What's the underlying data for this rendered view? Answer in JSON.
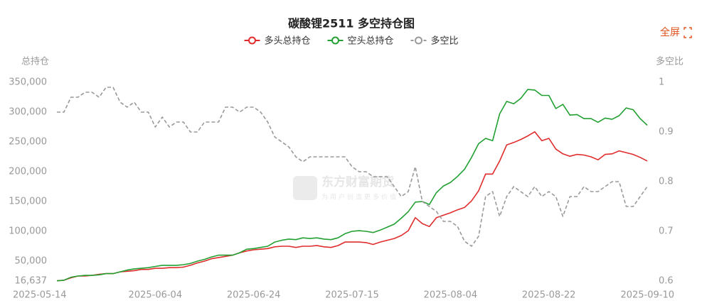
{
  "chart_data": {
    "type": "line",
    "title": "碳酸锂2511 多空持仓图",
    "y_label": "总持仓",
    "y2_label": "多空比",
    "categories": [
      "2025-05-14",
      null,
      null,
      null,
      null,
      null,
      null,
      null,
      null,
      null,
      null,
      null,
      null,
      null,
      "2025-06-04",
      null,
      null,
      null,
      null,
      null,
      null,
      null,
      null,
      null,
      null,
      null,
      null,
      null,
      "2025-06-24",
      null,
      null,
      null,
      null,
      null,
      null,
      null,
      null,
      null,
      null,
      null,
      null,
      null,
      "2025-07-15",
      null,
      null,
      null,
      null,
      null,
      null,
      null,
      null,
      null,
      null,
      null,
      null,
      null,
      "2025-08-04",
      null,
      null,
      null,
      null,
      null,
      null,
      null,
      null,
      null,
      null,
      null,
      null,
      null,
      "2025-08-22",
      null,
      null,
      null,
      null,
      null,
      null,
      null,
      null,
      null,
      null,
      null,
      null,
      null,
      "2025-09-10"
    ],
    "series": [
      {
        "name": "多头总持仓",
        "color": "#e02c2c",
        "values": [
          17000,
          18000,
          22000,
          25000,
          25000,
          26000,
          28000,
          29000,
          29000,
          32000,
          33000,
          34000,
          36000,
          36000,
          38000,
          38000,
          39000,
          39000,
          40000,
          43000,
          47000,
          50000,
          54000,
          56000,
          58000,
          60000,
          64000,
          67000,
          69000,
          70000,
          71000,
          74000,
          75000,
          75000,
          73000,
          75000,
          75000,
          76000,
          74000,
          73000,
          76000,
          82000,
          82000,
          82000,
          81000,
          78000,
          82000,
          85000,
          88000,
          93000,
          101000,
          123000,
          113000,
          108000,
          123000,
          127000,
          131000,
          136000,
          140000,
          151000,
          168000,
          196000,
          196000,
          218000,
          245000,
          249000,
          254000,
          260000,
          267000,
          252000,
          256000,
          238000,
          230000,
          226000,
          229000,
          228000,
          225000,
          220000,
          229000,
          230000,
          235000,
          232000,
          229000,
          224000,
          218000
        ]
      },
      {
        "name": "空头总持仓",
        "color": "#22a032",
        "values": [
          17000,
          18000,
          23000,
          25000,
          26000,
          26000,
          27000,
          29000,
          29000,
          32000,
          35000,
          37000,
          38000,
          39000,
          41000,
          43000,
          43000,
          43000,
          44000,
          46000,
          50000,
          53000,
          57000,
          60000,
          60000,
          60000,
          64000,
          70000,
          71000,
          73000,
          75000,
          82000,
          85000,
          87000,
          86000,
          89000,
          88000,
          89000,
          87000,
          86000,
          89000,
          96000,
          100000,
          101000,
          100000,
          98000,
          102000,
          107000,
          112000,
          122000,
          133000,
          149000,
          150000,
          145000,
          165000,
          176000,
          182000,
          192000,
          204000,
          224000,
          247000,
          256000,
          252000,
          297000,
          318000,
          314000,
          323000,
          338000,
          337000,
          328000,
          328000,
          306000,
          313000,
          295000,
          296000,
          289000,
          289000,
          283000,
          290000,
          288000,
          294000,
          307000,
          304000,
          289000,
          278000
        ]
      },
      {
        "name": "多空比",
        "color": "#9a9a9a",
        "axis": "y2",
        "dash": true,
        "values": [
          0.94,
          0.94,
          0.97,
          0.97,
          0.98,
          0.98,
          0.97,
          0.99,
          0.99,
          0.96,
          0.95,
          0.96,
          0.94,
          0.94,
          0.91,
          0.93,
          0.91,
          0.92,
          0.92,
          0.9,
          0.9,
          0.92,
          0.92,
          0.92,
          0.95,
          0.95,
          0.94,
          0.95,
          0.95,
          0.94,
          0.92,
          0.89,
          0.88,
          0.87,
          0.85,
          0.84,
          0.85,
          0.85,
          0.85,
          0.85,
          0.85,
          0.85,
          0.83,
          0.82,
          0.82,
          0.81,
          0.81,
          0.81,
          0.79,
          0.77,
          0.78,
          0.83,
          0.76,
          0.75,
          0.74,
          0.72,
          0.72,
          0.71,
          0.68,
          0.67,
          0.69,
          0.77,
          0.78,
          0.73,
          0.77,
          0.79,
          0.78,
          0.77,
          0.79,
          0.77,
          0.78,
          0.77,
          0.73,
          0.77,
          0.77,
          0.79,
          0.78,
          0.78,
          0.79,
          0.8,
          0.8,
          0.75,
          0.75,
          0.77,
          0.79
        ]
      }
    ],
    "ylim": [
      16637,
      350000
    ],
    "yticks": [
      {
        "value": 16637,
        "label": "16,637"
      },
      {
        "value": 50000,
        "label": "50,000"
      },
      {
        "value": 100000,
        "label": "100,000"
      },
      {
        "value": 150000,
        "label": "150,000"
      },
      {
        "value": 200000,
        "label": "200,000"
      },
      {
        "value": 250000,
        "label": "250,000"
      },
      {
        "value": 300000,
        "label": "300,000"
      },
      {
        "value": 350000,
        "label": "350,000"
      }
    ],
    "y2lim": [
      0.6,
      1
    ],
    "y2ticks": [
      0.6,
      0.7,
      0.8,
      0.9,
      1
    ],
    "legend": "top"
  },
  "toolbar": {
    "fullscreen": "全屏"
  },
  "watermark": {
    "brand": "东方财富期货",
    "slogan": "为用户创造更多价值"
  }
}
